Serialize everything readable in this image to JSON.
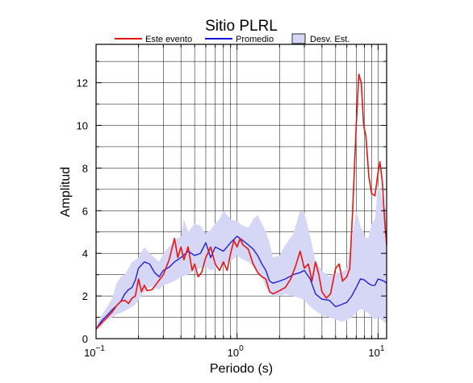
{
  "chart_data": {
    "type": "line",
    "title": "Sitio PLRL",
    "xlabel": "Periodo (s)",
    "ylabel": "Amplitud",
    "xscale": "log",
    "xlim": [
      0.1,
      11.5
    ],
    "ylim": [
      0,
      13.8
    ],
    "x_ticks": [
      {
        "value": 0.1,
        "base": "10",
        "exp": "−1"
      },
      {
        "value": 1,
        "base": "10",
        "exp": "0"
      },
      {
        "value": 10,
        "base": "10",
        "exp": "1"
      }
    ],
    "y_ticks": [
      0,
      2,
      4,
      6,
      8,
      10,
      12
    ],
    "grid": true,
    "legend_position": "top",
    "legend": [
      {
        "label": "Este evento",
        "kind": "line",
        "color": "#e8140f"
      },
      {
        "label": "Promedio",
        "kind": "line",
        "color": "#1414e0"
      },
      {
        "label": "Desv. Est.",
        "kind": "band",
        "color": "#d6d6f6"
      }
    ],
    "series": [
      {
        "name": "Este evento",
        "color": "#e8140f",
        "points": [
          [
            0.1,
            0.45
          ],
          [
            0.11,
            0.75
          ],
          [
            0.12,
            1.0
          ],
          [
            0.13,
            1.25
          ],
          [
            0.14,
            1.55
          ],
          [
            0.15,
            1.75
          ],
          [
            0.16,
            1.8
          ],
          [
            0.17,
            1.65
          ],
          [
            0.18,
            1.9
          ],
          [
            0.19,
            2.0
          ],
          [
            0.2,
            2.8
          ],
          [
            0.21,
            2.2
          ],
          [
            0.22,
            2.5
          ],
          [
            0.23,
            2.25
          ],
          [
            0.25,
            2.3
          ],
          [
            0.27,
            2.6
          ],
          [
            0.3,
            3.0
          ],
          [
            0.33,
            3.7
          ],
          [
            0.36,
            4.7
          ],
          [
            0.38,
            3.8
          ],
          [
            0.4,
            4.3
          ],
          [
            0.42,
            3.7
          ],
          [
            0.45,
            4.3
          ],
          [
            0.48,
            3.2
          ],
          [
            0.5,
            3.5
          ],
          [
            0.53,
            2.9
          ],
          [
            0.56,
            3.1
          ],
          [
            0.6,
            3.8
          ],
          [
            0.65,
            4.3
          ],
          [
            0.7,
            3.5
          ],
          [
            0.75,
            3.2
          ],
          [
            0.8,
            3.6
          ],
          [
            0.85,
            3.2
          ],
          [
            0.9,
            4.0
          ],
          [
            0.95,
            4.6
          ],
          [
            1.0,
            4.3
          ],
          [
            1.05,
            4.7
          ],
          [
            1.1,
            4.4
          ],
          [
            1.2,
            4.2
          ],
          [
            1.3,
            3.5
          ],
          [
            1.4,
            3.1
          ],
          [
            1.5,
            2.9
          ],
          [
            1.6,
            2.8
          ],
          [
            1.7,
            2.2
          ],
          [
            1.8,
            2.1
          ],
          [
            2.0,
            2.25
          ],
          [
            2.2,
            2.4
          ],
          [
            2.4,
            2.8
          ],
          [
            2.6,
            3.4
          ],
          [
            2.8,
            4.1
          ],
          [
            3.0,
            3.3
          ],
          [
            3.2,
            3.5
          ],
          [
            3.4,
            2.7
          ],
          [
            3.6,
            3.6
          ],
          [
            3.8,
            3.0
          ],
          [
            4.0,
            2.2
          ],
          [
            4.3,
            1.9
          ],
          [
            4.6,
            2.1
          ],
          [
            5.0,
            3.3
          ],
          [
            5.3,
            3.5
          ],
          [
            5.6,
            2.7
          ],
          [
            6.0,
            2.9
          ],
          [
            6.3,
            3.3
          ],
          [
            6.6,
            6.0
          ],
          [
            7.0,
            10.0
          ],
          [
            7.3,
            12.4
          ],
          [
            7.6,
            12.0
          ],
          [
            7.9,
            10.0
          ],
          [
            8.2,
            9.5
          ],
          [
            8.6,
            7.6
          ],
          [
            9.0,
            6.8
          ],
          [
            9.5,
            6.7
          ],
          [
            10.0,
            7.8
          ],
          [
            10.3,
            8.3
          ],
          [
            10.7,
            7.4
          ],
          [
            11.2,
            5.3
          ],
          [
            11.5,
            4.4
          ]
        ]
      },
      {
        "name": "Promedio",
        "color": "#1414e0",
        "points": [
          [
            0.1,
            0.45
          ],
          [
            0.11,
            0.85
          ],
          [
            0.12,
            1.1
          ],
          [
            0.13,
            1.35
          ],
          [
            0.14,
            1.55
          ],
          [
            0.15,
            1.75
          ],
          [
            0.16,
            2.1
          ],
          [
            0.17,
            2.3
          ],
          [
            0.18,
            2.4
          ],
          [
            0.19,
            2.75
          ],
          [
            0.2,
            3.3
          ],
          [
            0.22,
            3.6
          ],
          [
            0.24,
            3.5
          ],
          [
            0.26,
            3.1
          ],
          [
            0.28,
            2.9
          ],
          [
            0.3,
            3.2
          ],
          [
            0.33,
            3.35
          ],
          [
            0.36,
            3.6
          ],
          [
            0.4,
            3.8
          ],
          [
            0.45,
            4.1
          ],
          [
            0.5,
            3.9
          ],
          [
            0.55,
            4.0
          ],
          [
            0.6,
            4.5
          ],
          [
            0.65,
            3.8
          ],
          [
            0.7,
            4.3
          ],
          [
            0.8,
            4.1
          ],
          [
            0.9,
            4.5
          ],
          [
            1.0,
            4.8
          ],
          [
            1.1,
            4.6
          ],
          [
            1.2,
            4.4
          ],
          [
            1.3,
            4.2
          ],
          [
            1.4,
            3.9
          ],
          [
            1.5,
            3.5
          ],
          [
            1.6,
            3.2
          ],
          [
            1.7,
            2.7
          ],
          [
            1.8,
            2.6
          ],
          [
            2.0,
            2.7
          ],
          [
            2.2,
            2.8
          ],
          [
            2.5,
            3.0
          ],
          [
            2.8,
            3.1
          ],
          [
            3.0,
            3.2
          ],
          [
            3.3,
            2.8
          ],
          [
            3.6,
            2.1
          ],
          [
            4.0,
            1.85
          ],
          [
            4.5,
            1.8
          ],
          [
            5.0,
            1.5
          ],
          [
            5.5,
            1.6
          ],
          [
            6.0,
            1.7
          ],
          [
            6.5,
            2.0
          ],
          [
            7.0,
            2.4
          ],
          [
            7.5,
            2.8
          ],
          [
            8.0,
            2.75
          ],
          [
            8.5,
            2.6
          ],
          [
            9.0,
            2.5
          ],
          [
            9.5,
            2.5
          ],
          [
            10.0,
            2.8
          ],
          [
            10.5,
            2.75
          ],
          [
            11.0,
            2.7
          ],
          [
            11.5,
            2.6
          ]
        ]
      },
      {
        "name": "Desv. Est.",
        "color": "#d6d6f6",
        "band": true,
        "upper": [
          [
            0.1,
            0.6
          ],
          [
            0.11,
            1.1
          ],
          [
            0.12,
            1.5
          ],
          [
            0.13,
            1.9
          ],
          [
            0.14,
            2.6
          ],
          [
            0.15,
            2.9
          ],
          [
            0.16,
            3.0
          ],
          [
            0.17,
            3.3
          ],
          [
            0.18,
            3.6
          ],
          [
            0.19,
            3.7
          ],
          [
            0.2,
            3.8
          ],
          [
            0.22,
            4.3
          ],
          [
            0.24,
            4.0
          ],
          [
            0.26,
            3.8
          ],
          [
            0.28,
            3.6
          ],
          [
            0.3,
            4.0
          ],
          [
            0.33,
            4.3
          ],
          [
            0.36,
            4.6
          ],
          [
            0.4,
            4.8
          ],
          [
            0.42,
            5.6
          ],
          [
            0.45,
            5.0
          ],
          [
            0.5,
            5.4
          ],
          [
            0.55,
            5.3
          ],
          [
            0.6,
            4.9
          ],
          [
            0.65,
            5.1
          ],
          [
            0.7,
            5.4
          ],
          [
            0.75,
            5.6
          ],
          [
            0.8,
            6.0
          ],
          [
            0.9,
            5.6
          ],
          [
            1.0,
            5.5
          ],
          [
            1.1,
            5.3
          ],
          [
            1.2,
            5.2
          ],
          [
            1.3,
            5.6
          ],
          [
            1.4,
            5.8
          ],
          [
            1.5,
            5.4
          ],
          [
            1.6,
            5.0
          ],
          [
            1.7,
            4.5
          ],
          [
            1.8,
            3.8
          ],
          [
            2.0,
            3.9
          ],
          [
            2.2,
            4.4
          ],
          [
            2.5,
            4.9
          ],
          [
            2.8,
            6.0
          ],
          [
            3.0,
            5.9
          ],
          [
            3.3,
            4.8
          ],
          [
            3.6,
            3.6
          ],
          [
            4.0,
            3.2
          ],
          [
            4.5,
            2.9
          ],
          [
            5.0,
            3.1
          ],
          [
            5.5,
            3.1
          ],
          [
            6.0,
            3.3
          ],
          [
            6.5,
            4.6
          ],
          [
            7.0,
            6.0
          ],
          [
            7.5,
            5.3
          ],
          [
            8.0,
            4.8
          ],
          [
            8.5,
            4.7
          ],
          [
            9.0,
            5.4
          ],
          [
            9.5,
            5.6
          ],
          [
            10.0,
            7.2
          ],
          [
            10.5,
            6.8
          ],
          [
            11.0,
            6.2
          ],
          [
            11.5,
            6.0
          ]
        ],
        "lower": [
          [
            0.1,
            0.4
          ],
          [
            0.11,
            0.6
          ],
          [
            0.12,
            0.9
          ],
          [
            0.13,
            1.0
          ],
          [
            0.14,
            1.15
          ],
          [
            0.15,
            1.2
          ],
          [
            0.16,
            1.3
          ],
          [
            0.17,
            1.4
          ],
          [
            0.18,
            1.5
          ],
          [
            0.19,
            1.6
          ],
          [
            0.2,
            1.8
          ],
          [
            0.22,
            2.2
          ],
          [
            0.24,
            2.4
          ],
          [
            0.26,
            2.4
          ],
          [
            0.28,
            2.3
          ],
          [
            0.3,
            2.5
          ],
          [
            0.33,
            2.6
          ],
          [
            0.36,
            2.7
          ],
          [
            0.4,
            2.9
          ],
          [
            0.45,
            3.0
          ],
          [
            0.5,
            3.2
          ],
          [
            0.55,
            3.3
          ],
          [
            0.6,
            3.4
          ],
          [
            0.65,
            3.2
          ],
          [
            0.7,
            3.3
          ],
          [
            0.8,
            3.5
          ],
          [
            0.9,
            3.6
          ],
          [
            1.0,
            3.9
          ],
          [
            1.1,
            3.7
          ],
          [
            1.2,
            3.6
          ],
          [
            1.3,
            3.4
          ],
          [
            1.4,
            3.1
          ],
          [
            1.5,
            2.9
          ],
          [
            1.6,
            2.4
          ],
          [
            1.7,
            2.2
          ],
          [
            1.8,
            2.0
          ],
          [
            2.0,
            2.0
          ],
          [
            2.2,
            2.1
          ],
          [
            2.5,
            2.0
          ],
          [
            2.8,
            1.9
          ],
          [
            3.0,
            1.8
          ],
          [
            3.3,
            1.5
          ],
          [
            3.6,
            1.3
          ],
          [
            4.0,
            1.1
          ],
          [
            4.5,
            1.0
          ],
          [
            5.0,
            0.9
          ],
          [
            5.5,
            0.8
          ],
          [
            6.0,
            0.85
          ],
          [
            6.5,
            1.0
          ],
          [
            7.0,
            1.2
          ],
          [
            7.5,
            1.4
          ],
          [
            8.0,
            1.3
          ],
          [
            8.5,
            1.2
          ],
          [
            9.0,
            1.0
          ],
          [
            9.5,
            0.9
          ],
          [
            10.0,
            1.0
          ],
          [
            10.5,
            0.9
          ],
          [
            11.0,
            0.8
          ],
          [
            11.5,
            0.7
          ]
        ]
      }
    ]
  }
}
